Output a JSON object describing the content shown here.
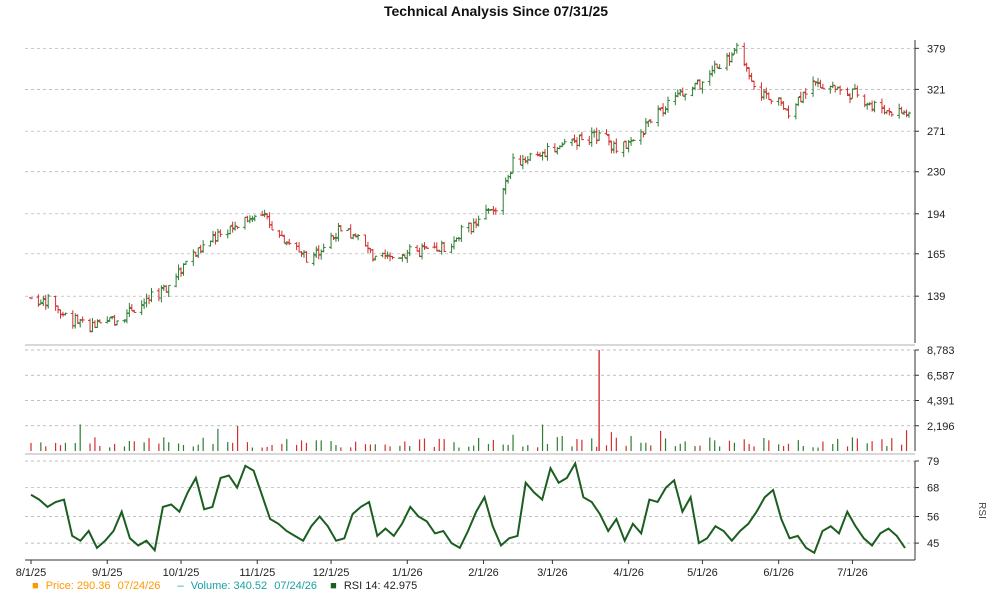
{
  "chart_data": [
    {
      "type": "ohlc",
      "title": "Technical Analysis Since 07/31/25",
      "y_scale": "log",
      "ylim": [
        115,
        392
      ],
      "y_ticks": [
        139,
        165,
        194,
        230,
        271,
        321,
        379
      ],
      "x_ticks": [
        "8/1/25",
        "9/1/25",
        "10/1/25",
        "11/1/25",
        "12/1/25",
        "1/1/26",
        "2/1/26",
        "3/1/26",
        "4/1/26",
        "5/1/26",
        "6/1/26",
        "7/1/26"
      ],
      "x_range": [
        "2025-08-01",
        "2026-07-24"
      ],
      "series": [
        {
          "x": "2025-08-01",
          "close": 138
        },
        {
          "x": "2025-08-08",
          "close": 136
        },
        {
          "x": "2025-08-15",
          "close": 128
        },
        {
          "x": "2025-08-22",
          "close": 124
        },
        {
          "x": "2025-08-29",
          "close": 123
        },
        {
          "x": "2025-09-05",
          "close": 127
        },
        {
          "x": "2025-09-12",
          "close": 133
        },
        {
          "x": "2025-09-19",
          "close": 138
        },
        {
          "x": "2025-09-26",
          "close": 145
        },
        {
          "x": "2025-10-03",
          "close": 160
        },
        {
          "x": "2025-10-10",
          "close": 170
        },
        {
          "x": "2025-10-17",
          "close": 180
        },
        {
          "x": "2025-10-24",
          "close": 186
        },
        {
          "x": "2025-10-31",
          "close": 196
        },
        {
          "x": "2025-11-07",
          "close": 185
        },
        {
          "x": "2025-11-14",
          "close": 172
        },
        {
          "x": "2025-11-21",
          "close": 163
        },
        {
          "x": "2025-11-28",
          "close": 170
        },
        {
          "x": "2025-12-05",
          "close": 182
        },
        {
          "x": "2025-12-12",
          "close": 176
        },
        {
          "x": "2025-12-19",
          "close": 160
        },
        {
          "x": "2025-12-26",
          "close": 163
        },
        {
          "x": "2026-01-02",
          "close": 166
        },
        {
          "x": "2026-01-09",
          "close": 167
        },
        {
          "x": "2026-01-16",
          "close": 170
        },
        {
          "x": "2026-01-23",
          "close": 180
        },
        {
          "x": "2026-01-30",
          "close": 188
        },
        {
          "x": "2026-02-06",
          "close": 200
        },
        {
          "x": "2026-02-13",
          "close": 238
        },
        {
          "x": "2026-02-20",
          "close": 245
        },
        {
          "x": "2026-02-27",
          "close": 250
        },
        {
          "x": "2026-03-06",
          "close": 258
        },
        {
          "x": "2026-03-13",
          "close": 263
        },
        {
          "x": "2026-03-20",
          "close": 268
        },
        {
          "x": "2026-03-27",
          "close": 253
        },
        {
          "x": "2026-04-03",
          "close": 258
        },
        {
          "x": "2026-04-10",
          "close": 285
        },
        {
          "x": "2026-04-17",
          "close": 305
        },
        {
          "x": "2026-04-24",
          "close": 315
        },
        {
          "x": "2026-05-01",
          "close": 330
        },
        {
          "x": "2026-05-08",
          "close": 355
        },
        {
          "x": "2026-05-15",
          "close": 375
        },
        {
          "x": "2026-05-22",
          "close": 320
        },
        {
          "x": "2026-05-29",
          "close": 312
        },
        {
          "x": "2026-06-05",
          "close": 295
        },
        {
          "x": "2026-06-12",
          "close": 320
        },
        {
          "x": "2026-06-19",
          "close": 330
        },
        {
          "x": "2026-06-26",
          "close": 318
        },
        {
          "x": "2026-07-03",
          "close": 315
        },
        {
          "x": "2026-07-10",
          "close": 300
        },
        {
          "x": "2026-07-17",
          "close": 295
        },
        {
          "x": "2026-07-24",
          "close": 290.36
        }
      ]
    },
    {
      "type": "bar",
      "ylim": [
        0,
        8783
      ],
      "y_ticks": [
        "2,196",
        "4,391",
        "6,587",
        "8,783"
      ],
      "notes": "daily volume bars, mostly small with one spike near 3/20/26",
      "spike": {
        "x": "2026-03-20",
        "value": 8783
      }
    },
    {
      "type": "line",
      "ylabel": "RSI",
      "ylim": [
        38,
        79
      ],
      "y_ticks": [
        45,
        56,
        68,
        79
      ],
      "series": [
        {
          "name": "RSI 14",
          "values": [
            65,
            63,
            60,
            62,
            63,
            48,
            46,
            50,
            43,
            46,
            50,
            58,
            47,
            44,
            46,
            42,
            60,
            61,
            58,
            66,
            72,
            59,
            60,
            72,
            73,
            68,
            77,
            75,
            65,
            55,
            53,
            50,
            48,
            46,
            52,
            56,
            52,
            46,
            47,
            57,
            60,
            62,
            48,
            51,
            48,
            53,
            60,
            56,
            54,
            49,
            50,
            45,
            43,
            50,
            58,
            64,
            52,
            44,
            47,
            48,
            70,
            66,
            63,
            76,
            70,
            72,
            78,
            64,
            62,
            57,
            50,
            55,
            46,
            53,
            49,
            63,
            62,
            68,
            71,
            58,
            64,
            45,
            47,
            52,
            50,
            46,
            50,
            53,
            58,
            64,
            67,
            55,
            47,
            48,
            43,
            41,
            50,
            52,
            49,
            58,
            52,
            47,
            44,
            49,
            51,
            48,
            42.975
          ]
        }
      ]
    }
  ],
  "legend": {
    "price_label": "Price: 290.36",
    "price_date": "07/24/26",
    "volume_label": "Volume: 340.52",
    "volume_date": "07/24/26",
    "rsi_label": "RSI 14: 42.975"
  },
  "colors": {
    "up": "#2e7d32",
    "down": "#d32f2f",
    "rsi": "#1b5e20",
    "grid": "#aaaaaa",
    "price_legend": "#ff9800",
    "volume_legend": "#1aa0a0"
  }
}
